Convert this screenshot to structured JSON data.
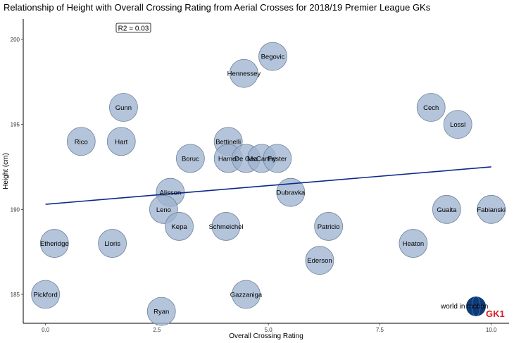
{
  "chart_data": {
    "type": "scatter",
    "title": "Relationship of Height with Overall Crossing Rating from Aerial Crosses for 2018/19 Premier League GKs",
    "xlabel": "Overall Crossing Rating",
    "ylabel": "Height (cm)",
    "xlim": [
      -0.5,
      10.4
    ],
    "ylim": [
      183.3,
      201.2
    ],
    "x_ticks": [
      0.0,
      2.5,
      5.0,
      7.5,
      10.0
    ],
    "x_tick_labels": [
      "0.0",
      "2.5",
      "5.0",
      "7.5",
      "10.0"
    ],
    "y_ticks": [
      185,
      190,
      195,
      200
    ],
    "y_tick_labels": [
      "185",
      "190",
      "195",
      "200"
    ],
    "annotation": "R2 = 0.03",
    "trend_line": {
      "x": [
        0.0,
        10.0
      ],
      "y": [
        190.3,
        192.5
      ]
    },
    "points": [
      {
        "name": "Begovic",
        "x": 5.1,
        "y": 199
      },
      {
        "name": "Hennessey",
        "x": 4.45,
        "y": 198
      },
      {
        "name": "Gunn",
        "x": 1.75,
        "y": 196
      },
      {
        "name": "Cech",
        "x": 8.65,
        "y": 196
      },
      {
        "name": "Lossl",
        "x": 9.25,
        "y": 195
      },
      {
        "name": "Rico",
        "x": 0.8,
        "y": 194
      },
      {
        "name": "Hart",
        "x": 1.7,
        "y": 194
      },
      {
        "name": "Bettinelli",
        "x": 4.1,
        "y": 194
      },
      {
        "name": "Boruc",
        "x": 3.25,
        "y": 193
      },
      {
        "name": "Hamer",
        "x": 4.1,
        "y": 193
      },
      {
        "name": "De Gea",
        "x": 4.5,
        "y": 193
      },
      {
        "name": "McCarthy",
        "x": 4.85,
        "y": 193
      },
      {
        "name": "Foster",
        "x": 5.2,
        "y": 193
      },
      {
        "name": "Alisson",
        "x": 2.8,
        "y": 191
      },
      {
        "name": "Dubravka",
        "x": 5.5,
        "y": 191
      },
      {
        "name": "Leno",
        "x": 2.65,
        "y": 190
      },
      {
        "name": "Guaita",
        "x": 9.0,
        "y": 190
      },
      {
        "name": "Fabianski",
        "x": 10.0,
        "y": 190
      },
      {
        "name": "Kepa",
        "x": 3.0,
        "y": 189
      },
      {
        "name": "Schmeichel",
        "x": 4.05,
        "y": 189
      },
      {
        "name": "Patricio",
        "x": 6.35,
        "y": 189
      },
      {
        "name": "Etheridge",
        "x": 0.2,
        "y": 188
      },
      {
        "name": "Lloris",
        "x": 1.5,
        "y": 188
      },
      {
        "name": "Heaton",
        "x": 8.25,
        "y": 188
      },
      {
        "name": "Ederson",
        "x": 6.15,
        "y": 187
      },
      {
        "name": "Pickford",
        "x": 0.0,
        "y": 185
      },
      {
        "name": "Gazzaniga",
        "x": 4.5,
        "y": 185
      },
      {
        "name": "Ryan",
        "x": 2.6,
        "y": 184
      }
    ],
    "point_color": "#9fb3cf",
    "point_stroke": "#6f839c",
    "trend_color": "#0a2a8a",
    "grid": false
  },
  "branding": {
    "logo_text": "world in motion",
    "gk_text": "GK1",
    "gk_color": "#d32027",
    "globe_color": "#0e3a78"
  }
}
